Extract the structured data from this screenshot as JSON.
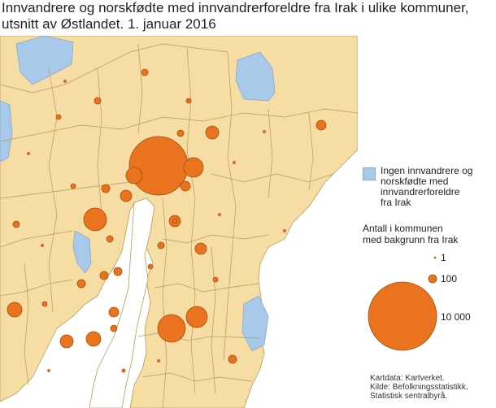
{
  "title": "Innvandrere og norskfødte med innvandrerforeldre fra Irak i ulike kommuner, utsnitt av Østlandet. 1. januar 2016",
  "legend": {
    "none_label_lines": [
      "Ingen innvandrere og",
      "norskfødte med",
      "innvandrerforeldre",
      "fra Irak"
    ],
    "size_title_lines": [
      "Antall i kommunen",
      "med bakgrunn fra Irak"
    ],
    "size_values": [
      "1",
      "100",
      "10 000"
    ]
  },
  "source_lines": [
    "Kartdata: Kartverket.",
    "Kilde: Befolkningsstatistikk,",
    "Statistisk sentralbyrå."
  ],
  "colors": {
    "land": "#f5dda3",
    "border": "#b89a5c",
    "water": "#a9c9ea",
    "sea": "#ffffff",
    "circle": "#e9731e",
    "circle_stroke": "#a64d0c"
  },
  "map_data": {
    "circle_values": [
      6500,
      320,
      230,
      250,
      230,
      800,
      480,
      500,
      260,
      430,
      360,
      140,
      120,
      110,
      80,
      70,
      60,
      50,
      40,
      90,
      60,
      35,
      25,
      20,
      15,
      50,
      40,
      30,
      25,
      20,
      10,
      8,
      5,
      4,
      3,
      2,
      2,
      1,
      1,
      1,
      1,
      1,
      1,
      1,
      1
    ]
  }
}
